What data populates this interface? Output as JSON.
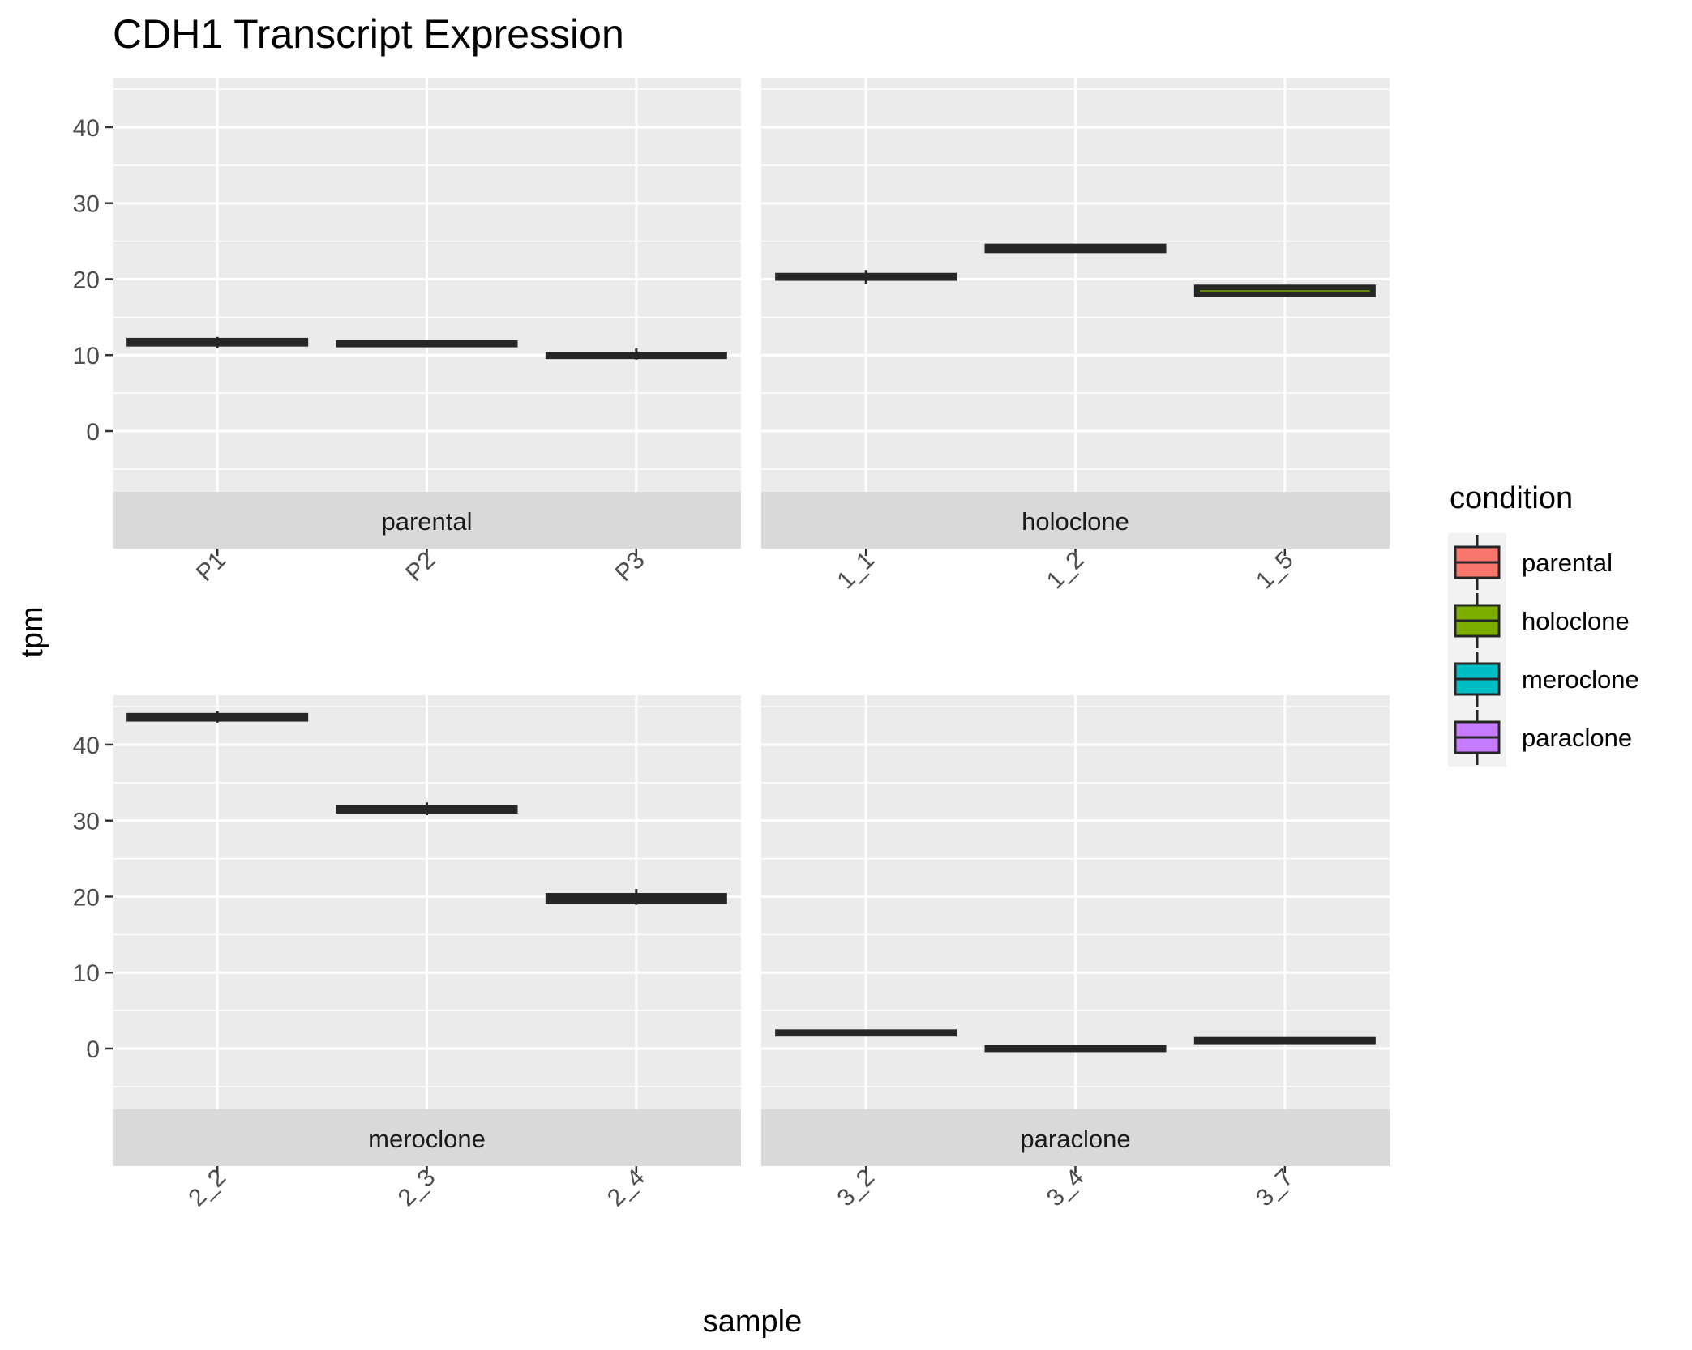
{
  "chart_data": {
    "type": "box",
    "title": "CDH1 Transcript Expression",
    "xlabel": "sample",
    "ylabel": "tpm",
    "ylim": [
      -8,
      46.5
    ],
    "yticks": [
      0,
      10,
      20,
      30,
      40
    ],
    "grid": true,
    "legend": {
      "title": "condition",
      "position": "right",
      "entries": [
        {
          "label": "parental",
          "color": "#F8766D"
        },
        {
          "label": "holoclone",
          "color": "#7CAE00"
        },
        {
          "label": "meroclone",
          "color": "#00BFC4"
        },
        {
          "label": "paraclone",
          "color": "#C77CFF"
        }
      ]
    },
    "facets": [
      {
        "strip": "parental",
        "color": "#F8766D",
        "categories": [
          "P1",
          "P2",
          "P3"
        ],
        "boxes": [
          {
            "q1": 11.5,
            "median": 11.7,
            "q3": 11.9,
            "min": 10.9,
            "max": 12.4
          },
          {
            "q1": 11.4,
            "median": 11.5,
            "q3": 11.6,
            "min": 11.4,
            "max": 11.6
          },
          {
            "q1": 9.85,
            "median": 9.95,
            "q3": 10.05,
            "min": 9.4,
            "max": 10.9
          }
        ]
      },
      {
        "strip": "holoclone",
        "color": "#7CAE00",
        "categories": [
          "1_1",
          "1_2",
          "1_5"
        ],
        "boxes": [
          {
            "q1": 20.15,
            "median": 20.3,
            "q3": 20.45,
            "min": 19.4,
            "max": 21.2
          },
          {
            "q1": 23.8,
            "median": 24.0,
            "q3": 24.3,
            "min": 23.7,
            "max": 24.4
          },
          {
            "q1": 18.0,
            "median": 18.8,
            "q3": 18.9,
            "min": 18.0,
            "max": 19.0
          }
        ]
      },
      {
        "strip": "meroclone",
        "color": "#00BFC4",
        "categories": [
          "2_2",
          "2_3",
          "2_4"
        ],
        "boxes": [
          {
            "q1": 43.4,
            "median": 43.6,
            "q3": 43.8,
            "min": 42.9,
            "max": 44.4
          },
          {
            "q1": 31.3,
            "median": 31.5,
            "q3": 31.7,
            "min": 30.7,
            "max": 32.4
          },
          {
            "q1": 19.4,
            "median": 19.75,
            "q3": 20.1,
            "min": 18.9,
            "max": 21.0
          }
        ]
      },
      {
        "strip": "paraclone",
        "color": "#C77CFF",
        "categories": [
          "3_2",
          "3_4",
          "3_7"
        ],
        "boxes": [
          {
            "q1": 1.95,
            "median": 2.05,
            "q3": 2.15,
            "min": 1.95,
            "max": 2.15
          },
          {
            "q1": -0.1,
            "median": 0.0,
            "q3": 0.1,
            "min": -0.1,
            "max": 0.1
          },
          {
            "q1": 0.95,
            "median": 1.05,
            "q3": 1.15,
            "min": 0.95,
            "max": 1.15
          }
        ]
      }
    ]
  }
}
